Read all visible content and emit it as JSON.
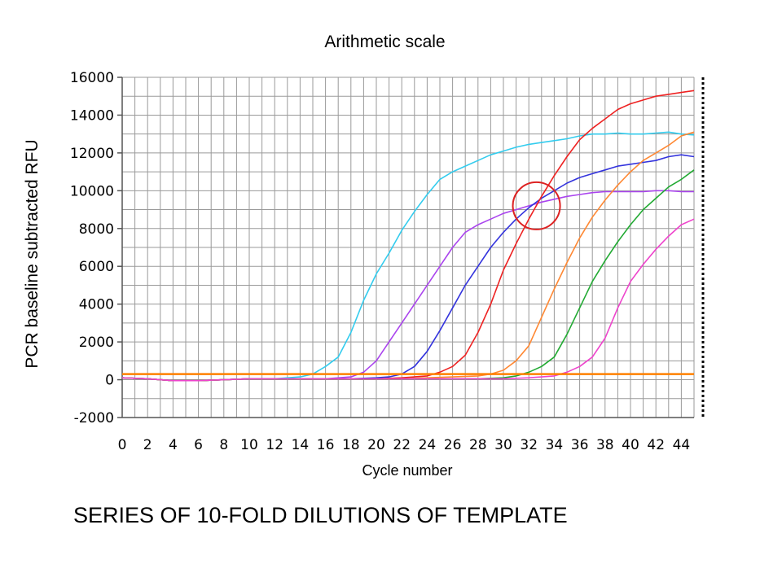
{
  "chart_data": {
    "type": "line",
    "title": "Arithmetic scale",
    "xlabel": "Cycle number",
    "ylabel": "PCR baseline subtracted RFU",
    "xlim": [
      0,
      45
    ],
    "ylim": [
      -2000,
      16000
    ],
    "x_ticks": [
      "0",
      "2",
      "4",
      "6",
      "8",
      "10",
      "12",
      "14",
      "16",
      "18",
      "20",
      "22",
      "24",
      "26",
      "28",
      "30",
      "32",
      "34",
      "36",
      "38",
      "40",
      "42",
      "44"
    ],
    "y_ticks": [
      "16000",
      "14000",
      "12000",
      "10000",
      "8000",
      "6000",
      "4000",
      "2000",
      "0",
      "-2000"
    ],
    "y_tick_values": [
      16000,
      14000,
      12000,
      10000,
      8000,
      6000,
      4000,
      2000,
      0,
      -2000
    ],
    "grid": true,
    "threshold": {
      "value": 300,
      "color": "#ff8000"
    },
    "highlight_circle": {
      "x": 32.6,
      "y": 9200
    },
    "series": [
      {
        "color": "#33ccee",
        "x": [
          0,
          2,
          4,
          6,
          8,
          10,
          12,
          14,
          15,
          16,
          17,
          18,
          19,
          20,
          21,
          22,
          23,
          24,
          25,
          26,
          27,
          28,
          29,
          30,
          31,
          32,
          33,
          34,
          35,
          36,
          37,
          38,
          39,
          40,
          41,
          42,
          43,
          44,
          45
        ],
        "y": [
          100,
          50,
          -50,
          -50,
          0,
          50,
          50,
          150,
          300,
          700,
          1200,
          2500,
          4200,
          5600,
          6700,
          7900,
          8900,
          9800,
          10600,
          11000,
          11300,
          11600,
          11900,
          12100,
          12300,
          12450,
          12550,
          12650,
          12750,
          12900,
          13000,
          13000,
          13050,
          13000,
          13000,
          13050,
          13100,
          13000,
          12950
        ]
      },
      {
        "color": "#aa44ee",
        "x": [
          0,
          2,
          4,
          6,
          8,
          10,
          12,
          14,
          16,
          18,
          19,
          20,
          21,
          22,
          23,
          24,
          25,
          26,
          27,
          28,
          29,
          30,
          31,
          32,
          33,
          34,
          35,
          36,
          37,
          38,
          39,
          40,
          41,
          42,
          43,
          44,
          45
        ],
        "y": [
          100,
          50,
          -50,
          -50,
          0,
          50,
          50,
          50,
          50,
          150,
          400,
          1000,
          2000,
          3000,
          4000,
          5000,
          6000,
          7000,
          7800,
          8200,
          8500,
          8800,
          9000,
          9200,
          9400,
          9550,
          9700,
          9800,
          9900,
          9950,
          9950,
          9950,
          9950,
          10000,
          10000,
          9950,
          9950
        ]
      },
      {
        "color": "#3333dd",
        "x": [
          0,
          2,
          4,
          6,
          8,
          10,
          12,
          14,
          16,
          18,
          20,
          21,
          22,
          23,
          24,
          25,
          26,
          27,
          28,
          29,
          30,
          31,
          32,
          33,
          34,
          35,
          36,
          37,
          38,
          39,
          40,
          41,
          42,
          43,
          44,
          45
        ],
        "y": [
          100,
          50,
          -50,
          -50,
          0,
          50,
          50,
          50,
          50,
          50,
          100,
          150,
          300,
          700,
          1500,
          2600,
          3800,
          5000,
          6000,
          7000,
          7800,
          8500,
          9100,
          9600,
          10000,
          10400,
          10700,
          10900,
          11100,
          11300,
          11400,
          11500,
          11600,
          11800,
          11900,
          11800
        ]
      },
      {
        "color": "#ee2222",
        "x": [
          0,
          2,
          4,
          6,
          8,
          10,
          12,
          14,
          16,
          18,
          20,
          22,
          24,
          25,
          26,
          27,
          28,
          29,
          30,
          31,
          32,
          33,
          34,
          35,
          36,
          37,
          38,
          39,
          40,
          41,
          42,
          43,
          44,
          45
        ],
        "y": [
          100,
          50,
          -50,
          -50,
          0,
          50,
          50,
          50,
          50,
          50,
          50,
          100,
          200,
          400,
          700,
          1300,
          2500,
          4000,
          5800,
          7200,
          8500,
          9700,
          10800,
          11800,
          12700,
          13300,
          13800,
          14300,
          14600,
          14800,
          15000,
          15100,
          15200,
          15300
        ]
      },
      {
        "color": "#ff8833",
        "x": [
          0,
          2,
          4,
          6,
          8,
          10,
          12,
          14,
          16,
          18,
          20,
          22,
          24,
          26,
          28,
          29,
          30,
          31,
          32,
          33,
          34,
          35,
          36,
          37,
          38,
          39,
          40,
          41,
          42,
          43,
          44,
          45
        ],
        "y": [
          100,
          50,
          -50,
          -50,
          0,
          50,
          50,
          50,
          50,
          50,
          50,
          50,
          100,
          150,
          200,
          300,
          500,
          1000,
          1800,
          3300,
          4800,
          6200,
          7500,
          8600,
          9500,
          10300,
          11000,
          11600,
          12000,
          12400,
          12900,
          13100
        ]
      },
      {
        "color": "#22aa33",
        "x": [
          0,
          2,
          4,
          6,
          8,
          10,
          12,
          14,
          16,
          18,
          20,
          22,
          24,
          26,
          28,
          30,
          31,
          32,
          33,
          34,
          35,
          36,
          37,
          38,
          39,
          40,
          41,
          42,
          43,
          44,
          45
        ],
        "y": [
          100,
          50,
          -50,
          -50,
          0,
          50,
          50,
          50,
          50,
          50,
          50,
          50,
          50,
          50,
          50,
          100,
          200,
          400,
          700,
          1200,
          2400,
          3800,
          5200,
          6300,
          7300,
          8200,
          9000,
          9600,
          10200,
          10600,
          11100
        ]
      },
      {
        "color": "#ee44cc",
        "x": [
          0,
          2,
          4,
          6,
          8,
          10,
          12,
          14,
          16,
          18,
          20,
          22,
          24,
          26,
          28,
          30,
          32,
          33,
          34,
          35,
          36,
          37,
          38,
          39,
          40,
          41,
          42,
          43,
          44,
          45
        ],
        "y": [
          100,
          50,
          -50,
          -50,
          0,
          50,
          50,
          50,
          50,
          50,
          50,
          50,
          50,
          50,
          50,
          50,
          100,
          150,
          200,
          400,
          700,
          1200,
          2200,
          3800,
          5200,
          6100,
          6900,
          7600,
          8200,
          8500
        ]
      }
    ]
  }
}
